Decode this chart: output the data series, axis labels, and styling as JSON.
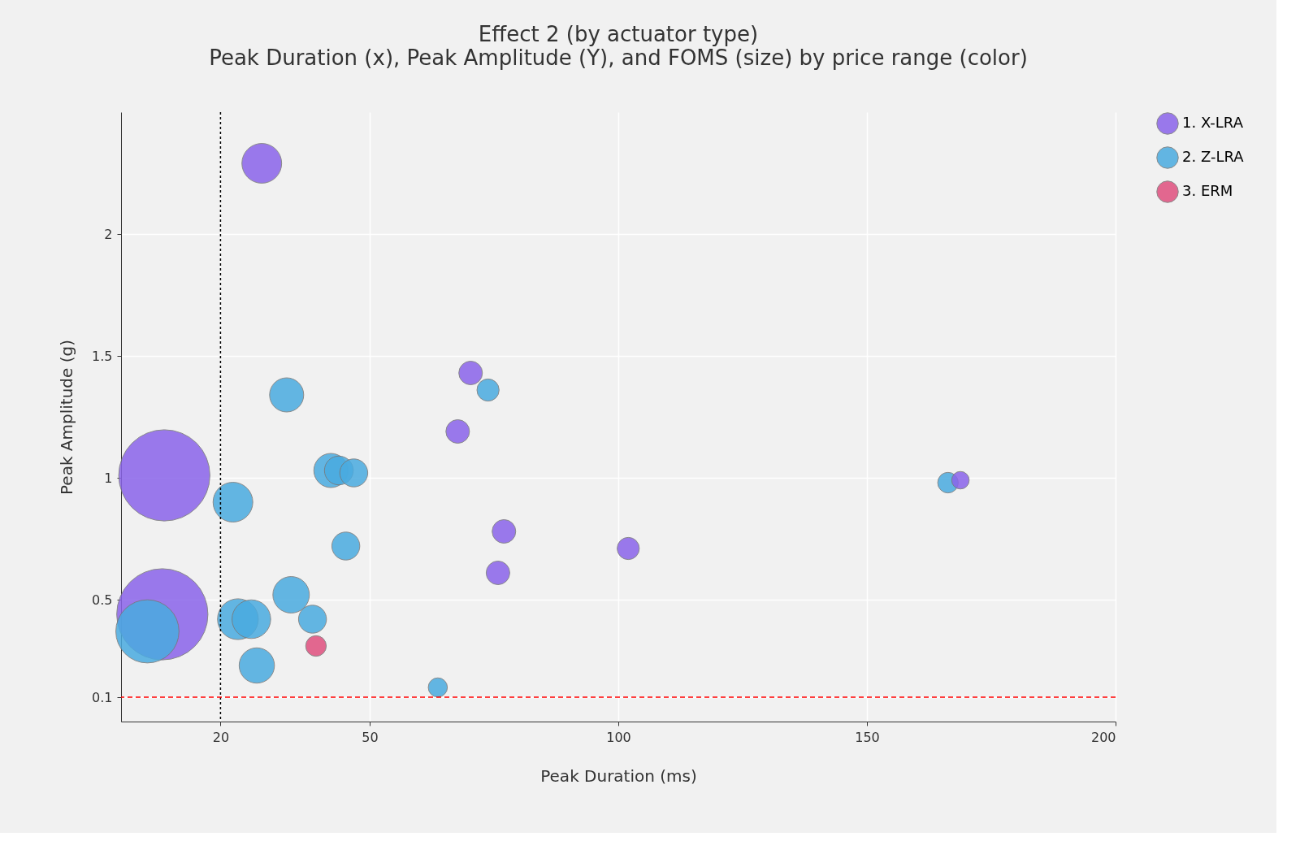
{
  "chart_data": {
    "type": "bubble",
    "title": "Effect 2 (by actuator type)",
    "subtitle": "Peak Duration (x), Peak Amplitude (Y), and FOMS (size) by price range (color)",
    "xlabel": "Peak Duration (ms)",
    "ylabel": "Peak Amplitude (g)",
    "xlim": [
      0,
      200
    ],
    "xticks": [
      20,
      50,
      100,
      150,
      200
    ],
    "ylim": [
      0,
      2.5
    ],
    "yticks": [
      0.1,
      0.5,
      1,
      1.5,
      2
    ],
    "grid": true,
    "legend": "top right",
    "series": [
      {
        "name": "1. X-LRA",
        "color": "#8a64ea",
        "x": [
          28.3,
          8.7,
          8.3,
          70.3,
          67.7,
          77,
          75.8,
          102,
          168.8
        ],
        "values": [
          2.29,
          1.01,
          0.44,
          1.43,
          1.19,
          0.78,
          0.61,
          0.71,
          0.99
        ],
        "sizes": [
          0.19,
          1,
          1,
          0.067,
          0.067,
          0.067,
          0.067,
          0.059,
          0.037
        ]
      },
      {
        "name": "2. Z-LRA",
        "color": "#4aabe0",
        "x": [
          33.3,
          22.5,
          42.2,
          43.8,
          46.8,
          45.2,
          34.2,
          23.5,
          26.2,
          38.5,
          27.3,
          5.3,
          73.8,
          63.7,
          166.3
        ],
        "values": [
          1.34,
          0.9,
          1.03,
          1.03,
          1.02,
          0.72,
          0.52,
          0.42,
          0.42,
          0.42,
          0.23,
          0.37,
          1.36,
          0.14,
          0.98
        ],
        "sizes": [
          0.14,
          0.19,
          0.14,
          0.1,
          0.094,
          0.094,
          0.16,
          0.2,
          0.18,
          0.094,
          0.15,
          0.48,
          0.059,
          0.044,
          0.051
        ]
      },
      {
        "name": "3. ERM",
        "color": "#e0507f",
        "x": [
          39.2
        ],
        "values": [
          0.31
        ],
        "sizes": [
          0.051
        ]
      }
    ],
    "ref_lines": [
      {
        "axis": "x",
        "value": 20,
        "color": "#000000",
        "line_style": "dotted"
      },
      {
        "axis": "y",
        "value": 0.1,
        "color": "#ff0000",
        "line_style": "dashed"
      }
    ]
  }
}
